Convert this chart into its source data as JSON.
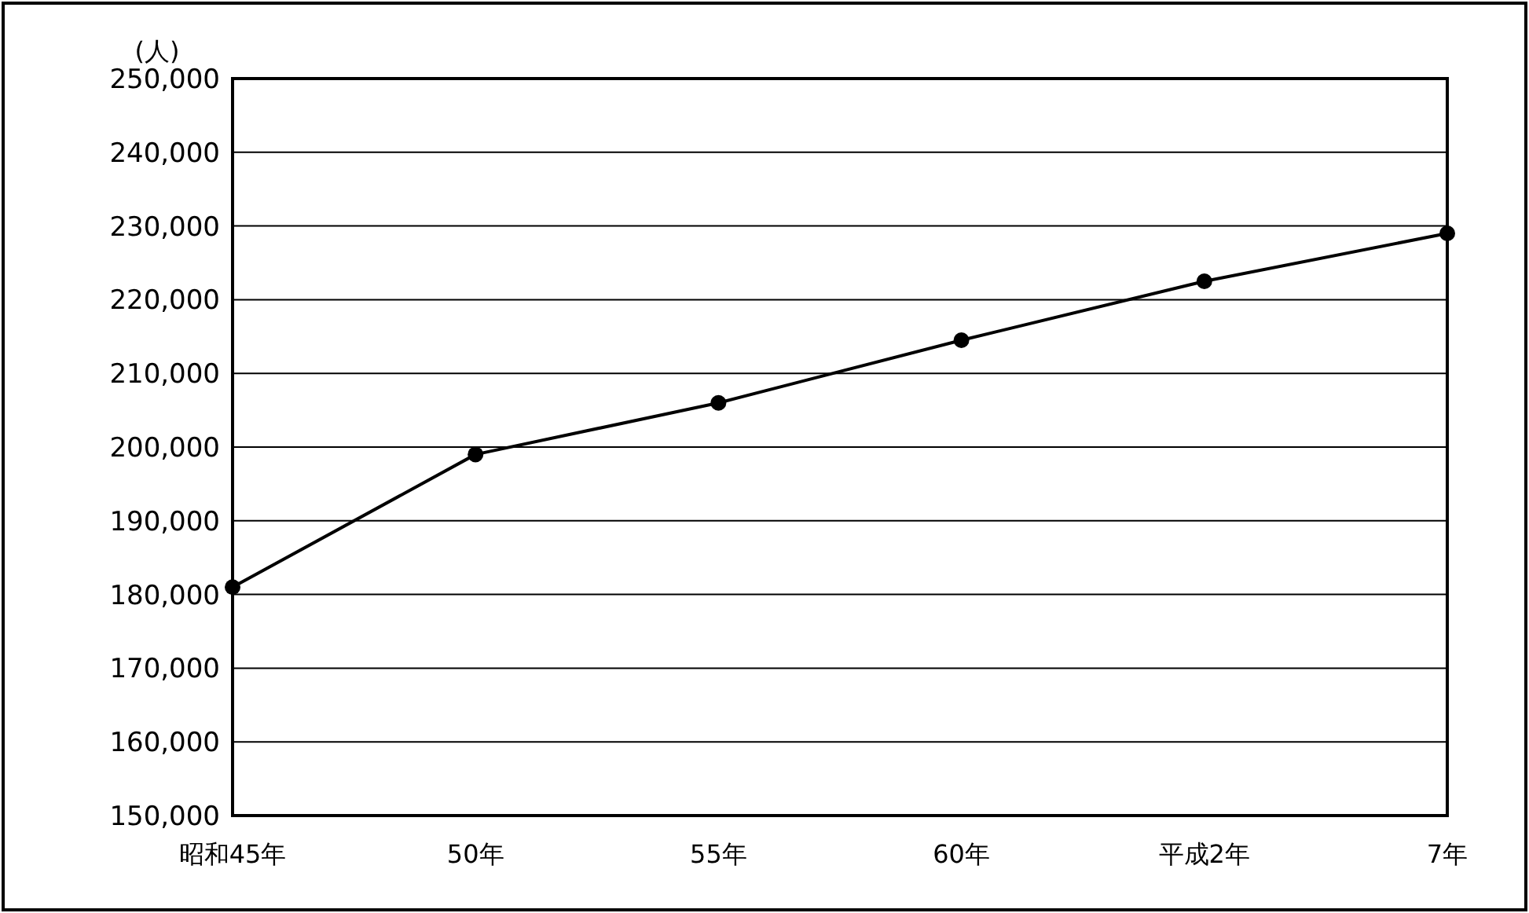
{
  "chart_data": {
    "type": "line",
    "ylabel": "(人)",
    "categories": [
      "昭和45年",
      "50年",
      "55年",
      "60年",
      "平成2年",
      "7年"
    ],
    "series": [
      {
        "color": "#000000",
        "values": [
          181000,
          199000,
          206000,
          214500,
          222500,
          229000
        ]
      }
    ],
    "ylim": [
      150000,
      250000
    ],
    "yticks": [
      {
        "value": 150000,
        "label": "150,000"
      },
      {
        "value": 160000,
        "label": "160,000"
      },
      {
        "value": 170000,
        "label": "170,000"
      },
      {
        "value": 180000,
        "label": "180,000"
      },
      {
        "value": 190000,
        "label": "190,000"
      },
      {
        "value": 200000,
        "label": "200,000"
      },
      {
        "value": 210000,
        "label": "210,000"
      },
      {
        "value": 220000,
        "label": "220,000"
      },
      {
        "value": 230000,
        "label": "230,000"
      },
      {
        "value": 240000,
        "label": "240,000"
      },
      {
        "value": 250000,
        "label": "250,000"
      }
    ],
    "grid": "y",
    "marker": "circle",
    "line_style": "solid"
  }
}
